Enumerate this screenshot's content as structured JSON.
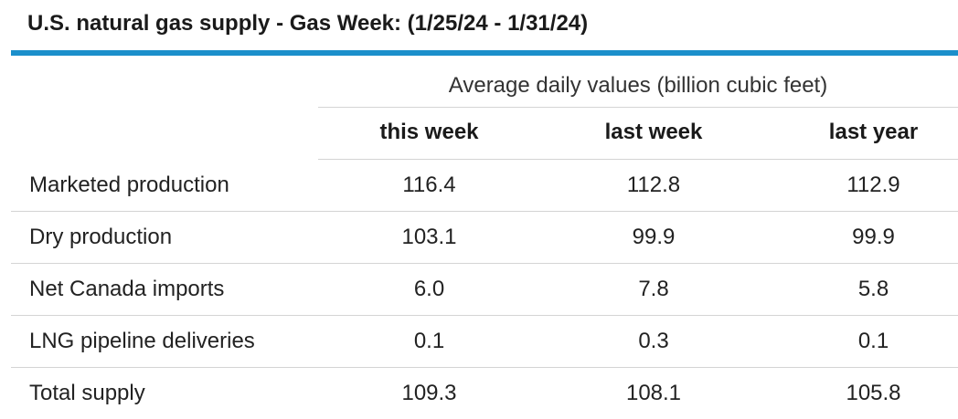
{
  "title": "U.S. natural gas supply - Gas Week: (1/25/24 - 1/31/24)",
  "colors": {
    "accent": "#1b8fcb",
    "rule": "#d4d4d4",
    "text": "#222222"
  },
  "chart_data": {
    "type": "table",
    "title": "U.S. natural gas supply - Gas Week: (1/25/24 - 1/31/24)",
    "subheader": "Average daily values (billion cubic feet)",
    "columns": [
      "this week",
      "last week",
      "last year"
    ],
    "rows": [
      {
        "label": "Marketed production",
        "values": [
          "116.4",
          "112.8",
          "112.9"
        ]
      },
      {
        "label": "Dry production",
        "values": [
          "103.1",
          "99.9",
          "99.9"
        ]
      },
      {
        "label": "Net Canada imports",
        "values": [
          "6.0",
          "7.8",
          "5.8"
        ]
      },
      {
        "label": "LNG pipeline deliveries",
        "values": [
          "0.1",
          "0.3",
          "0.1"
        ]
      },
      {
        "label": "Total supply",
        "values": [
          "109.3",
          "108.1",
          "105.8"
        ]
      }
    ]
  }
}
